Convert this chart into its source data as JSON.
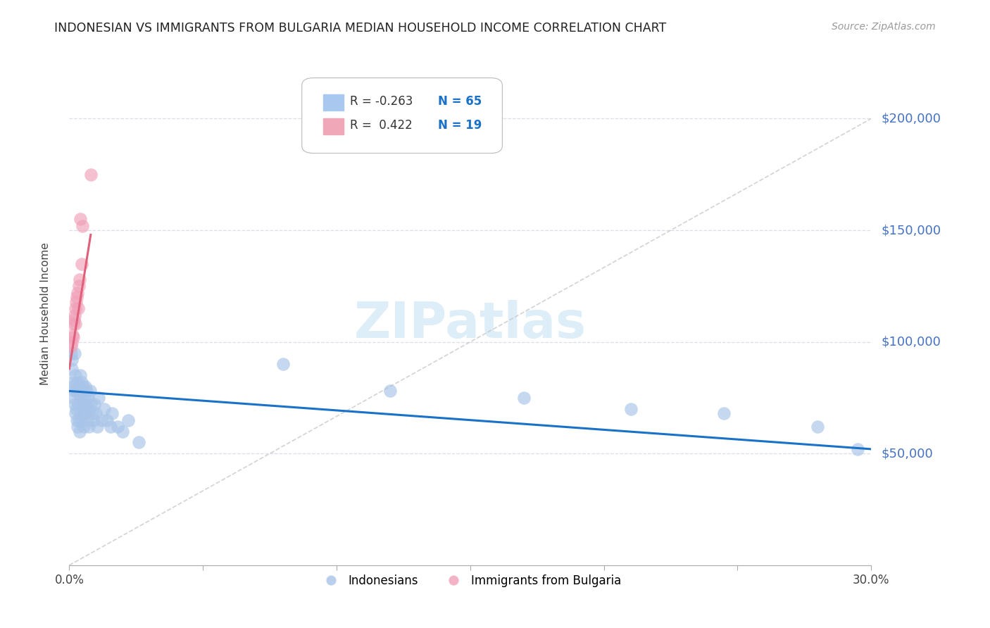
{
  "title": "INDONESIAN VS IMMIGRANTS FROM BULGARIA MEDIAN HOUSEHOLD INCOME CORRELATION CHART",
  "source": "Source: ZipAtlas.com",
  "ylabel": "Median Household Income",
  "xlim": [
    0.0,
    0.3
  ],
  "ylim": [
    0,
    225000
  ],
  "yticks": [
    0,
    50000,
    100000,
    150000,
    200000
  ],
  "ytick_labels": [
    "",
    "$50,000",
    "$100,000",
    "$150,000",
    "$200,000"
  ],
  "watermark": "ZIPatlas",
  "watermark_color": "#ddeef8",
  "legend_r1": "R = -0.263",
  "legend_n1": "N = 65",
  "legend_r2": "R =  0.422",
  "legend_n2": "N = 19",
  "legend_color1": "#a8c8f0",
  "legend_color2": "#f0a8b8",
  "blue_line_color": "#1a72c8",
  "pink_line_color": "#e0607a",
  "ref_line_color": "#c8c8c8",
  "dot_blue": "#a8c4e8",
  "dot_pink": "#f0a0b8",
  "title_fontsize": 12.5,
  "source_fontsize": 10,
  "watermark_fontsize": 52,
  "grid_color": "#d8dfe8",
  "right_label_color": "#4472c4",
  "indonesian_x": [
    0.0008,
    0.001,
    0.001,
    0.0012,
    0.0015,
    0.0015,
    0.0018,
    0.002,
    0.002,
    0.0022,
    0.0022,
    0.0025,
    0.0025,
    0.0027,
    0.0027,
    0.003,
    0.003,
    0.0032,
    0.0035,
    0.0035,
    0.0038,
    0.0038,
    0.004,
    0.004,
    0.0042,
    0.0045,
    0.0045,
    0.0048,
    0.005,
    0.0052,
    0.0055,
    0.0055,
    0.0058,
    0.006,
    0.006,
    0.0062,
    0.0065,
    0.0068,
    0.007,
    0.0072,
    0.0075,
    0.0078,
    0.008,
    0.0085,
    0.009,
    0.0095,
    0.01,
    0.0105,
    0.011,
    0.012,
    0.013,
    0.014,
    0.0155,
    0.016,
    0.018,
    0.02,
    0.022,
    0.026,
    0.08,
    0.12,
    0.17,
    0.21,
    0.245,
    0.28,
    0.295
  ],
  "indonesian_y": [
    95000,
    92000,
    88000,
    80000,
    82000,
    75000,
    78000,
    95000,
    72000,
    85000,
    68000,
    78000,
    70000,
    82000,
    65000,
    78000,
    62000,
    72000,
    80000,
    65000,
    78000,
    60000,
    85000,
    68000,
    75000,
    82000,
    65000,
    78000,
    72000,
    80000,
    68000,
    62000,
    75000,
    80000,
    68000,
    72000,
    78000,
    65000,
    75000,
    62000,
    70000,
    78000,
    72000,
    68000,
    65000,
    72000,
    68000,
    62000,
    75000,
    65000,
    70000,
    65000,
    62000,
    68000,
    62000,
    60000,
    65000,
    55000,
    90000,
    78000,
    75000,
    70000,
    68000,
    62000,
    52000
  ],
  "bulgaria_x": [
    0.0008,
    0.001,
    0.0012,
    0.0015,
    0.0015,
    0.0018,
    0.002,
    0.0022,
    0.0022,
    0.0025,
    0.0028,
    0.003,
    0.0032,
    0.0035,
    0.0038,
    0.004,
    0.0045,
    0.005,
    0.008
  ],
  "bulgaria_y": [
    98000,
    100000,
    103000,
    108000,
    102000,
    110000,
    112000,
    115000,
    108000,
    118000,
    120000,
    122000,
    115000,
    125000,
    128000,
    155000,
    135000,
    152000,
    175000
  ],
  "blue_line_x0": 0.0,
  "blue_line_x1": 0.3,
  "blue_line_y0": 78000,
  "blue_line_y1": 52000,
  "pink_line_x0": 0.0,
  "pink_line_x1": 0.008,
  "pink_line_y0": 88000,
  "pink_line_y1": 148000
}
